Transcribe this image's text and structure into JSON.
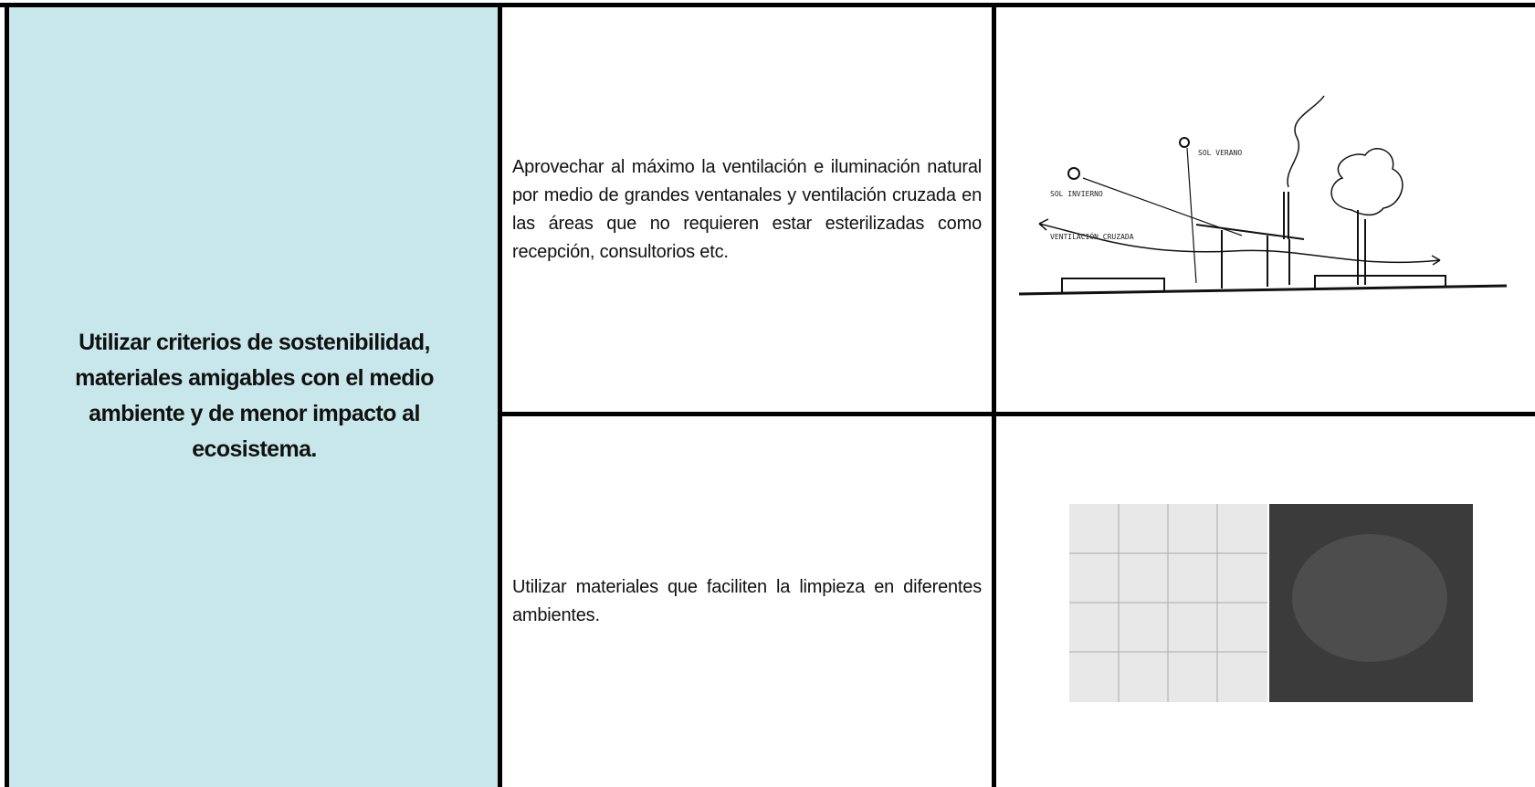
{
  "table": {
    "lead": "Utilizar criterios de sostenibilidad, materiales amigables con el medio ambiente y de menor impacto al ecosistema.",
    "rows": [
      {
        "text": "Aprovechar al máximo la ventilación e iluminación natural por medio de grandes ventanales y ventilación cruzada en las áreas que no requieren estar esterilizadas como recepción, consultorios etc."
      },
      {
        "text": "Utilizar materiales que faciliten la limpieza en diferentes ambientes."
      }
    ],
    "sketch_labels": [
      "SOL INVIERNO",
      "SOL VERANO",
      "VENTILACIÓN CRUZADA"
    ]
  }
}
